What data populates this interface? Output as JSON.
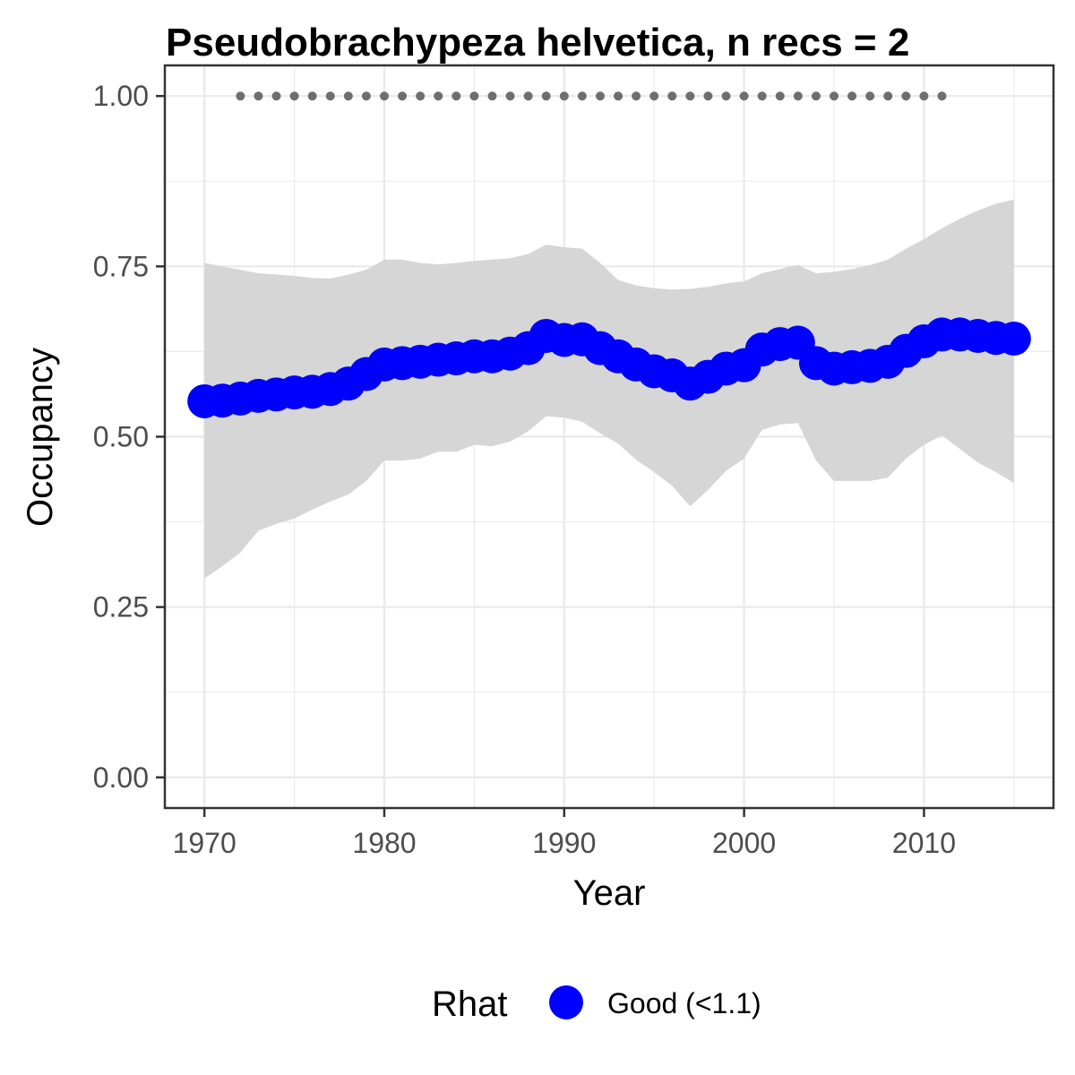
{
  "chart_data": {
    "type": "line",
    "title": "Pseudobrachypeza helvetica, n recs = 2",
    "xlabel": "Year",
    "ylabel": "Occupancy",
    "xlim": [
      1967.8,
      2017.2
    ],
    "ylim": [
      -0.045,
      1.045
    ],
    "x_ticks": [
      1970,
      1980,
      1990,
      2000,
      2010
    ],
    "x_tick_labels": [
      "1970",
      "1980",
      "1990",
      "2000",
      "2010"
    ],
    "y_ticks": [
      0,
      0.25,
      0.5,
      0.75,
      1.0
    ],
    "y_tick_labels": [
      "0.00",
      "0.25",
      "0.50",
      "0.75",
      "1.00"
    ],
    "grid": true,
    "legend_position": "bottom",
    "legend_title": "Rhat",
    "legend_label": "Good (<1.1)",
    "colors": {
      "series": "#0000ff",
      "ribbon": "#d6d6d6",
      "record_dots": "#6e6e6e",
      "grid": "#ebebeb",
      "panel_border": "#333333"
    },
    "x": [
      1970,
      1971,
      1972,
      1973,
      1974,
      1975,
      1976,
      1977,
      1978,
      1979,
      1980,
      1981,
      1982,
      1983,
      1984,
      1985,
      1986,
      1987,
      1988,
      1989,
      1990,
      1991,
      1992,
      1993,
      1994,
      1995,
      1996,
      1997,
      1998,
      1999,
      2000,
      2001,
      2002,
      2003,
      2004,
      2005,
      2006,
      2007,
      2008,
      2009,
      2010,
      2011,
      2012,
      2013,
      2014,
      2015
    ],
    "series": [
      {
        "name": "Good (<1.1)",
        "values": [
          0.552,
          0.553,
          0.556,
          0.56,
          0.562,
          0.565,
          0.566,
          0.57,
          0.578,
          0.592,
          0.606,
          0.608,
          0.61,
          0.613,
          0.615,
          0.618,
          0.618,
          0.622,
          0.63,
          0.648,
          0.642,
          0.643,
          0.63,
          0.618,
          0.606,
          0.596,
          0.59,
          0.578,
          0.588,
          0.6,
          0.605,
          0.628,
          0.636,
          0.638,
          0.608,
          0.6,
          0.602,
          0.604,
          0.61,
          0.626,
          0.64,
          0.65,
          0.65,
          0.648,
          0.645,
          0.644
        ]
      }
    ],
    "ribbon": {
      "upper": [
        0.755,
        0.75,
        0.745,
        0.74,
        0.738,
        0.736,
        0.733,
        0.732,
        0.738,
        0.745,
        0.76,
        0.76,
        0.755,
        0.753,
        0.755,
        0.758,
        0.76,
        0.762,
        0.768,
        0.782,
        0.778,
        0.776,
        0.755,
        0.73,
        0.722,
        0.718,
        0.716,
        0.717,
        0.72,
        0.725,
        0.728,
        0.74,
        0.746,
        0.752,
        0.74,
        0.742,
        0.746,
        0.752,
        0.76,
        0.776,
        0.79,
        0.806,
        0.82,
        0.832,
        0.842,
        0.848
      ],
      "lower": [
        0.292,
        0.31,
        0.33,
        0.362,
        0.372,
        0.38,
        0.393,
        0.405,
        0.415,
        0.435,
        0.465,
        0.465,
        0.468,
        0.478,
        0.478,
        0.488,
        0.486,
        0.493,
        0.508,
        0.53,
        0.528,
        0.522,
        0.505,
        0.49,
        0.466,
        0.448,
        0.428,
        0.398,
        0.422,
        0.45,
        0.468,
        0.51,
        0.518,
        0.52,
        0.465,
        0.435,
        0.435,
        0.435,
        0.44,
        0.468,
        0.488,
        0.502,
        0.482,
        0.462,
        0.448,
        0.432
      ]
    },
    "records": {
      "x": [
        1972,
        1973,
        1974,
        1975,
        1976,
        1977,
        1978,
        1979,
        1980,
        1981,
        1982,
        1983,
        1984,
        1985,
        1986,
        1987,
        1988,
        1989,
        1990,
        1991,
        1992,
        1993,
        1994,
        1995,
        1996,
        1997,
        1998,
        1999,
        2000,
        2001,
        2002,
        2003,
        2004,
        2005,
        2006,
        2007,
        2008,
        2009,
        2010,
        2011
      ],
      "y": 1.0
    }
  }
}
